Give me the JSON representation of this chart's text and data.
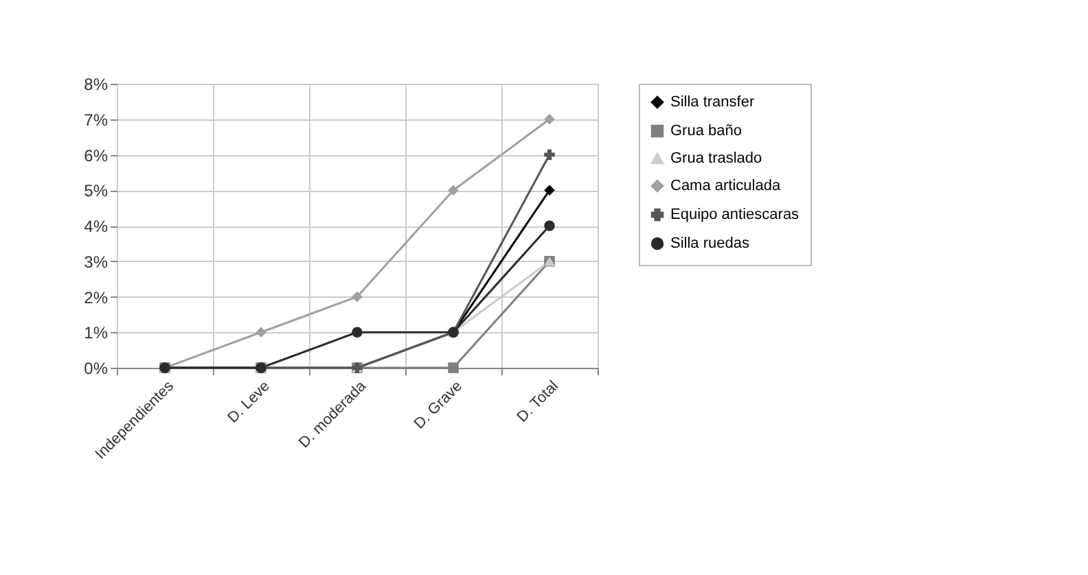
{
  "chart_data": {
    "type": "line",
    "categories": [
      "Independientes",
      "D. Leve",
      "D. moderada",
      "D. Grave",
      "D. Total"
    ],
    "series": [
      {
        "name": "Silla transfer",
        "color": "#000000",
        "marker": "diamond",
        "values": [
          0,
          0,
          0,
          1,
          5
        ]
      },
      {
        "name": "Grua baño",
        "color": "#808080",
        "marker": "square",
        "values": [
          0,
          0,
          0,
          0,
          3
        ]
      },
      {
        "name": "Grua traslado",
        "color": "#cccccc",
        "marker": "triangle",
        "values": [
          0,
          0,
          0,
          1,
          3
        ]
      },
      {
        "name": "Cama articulada",
        "color": "#a0a0a0",
        "marker": "diamond",
        "values": [
          0,
          1,
          2,
          5,
          7
        ]
      },
      {
        "name": "Equipo antiescaras",
        "color": "#555555",
        "marker": "cross",
        "values": [
          0,
          0,
          0,
          1,
          6
        ]
      },
      {
        "name": "Silla ruedas",
        "color": "#2b2b2b",
        "marker": "circle",
        "values": [
          0,
          0,
          1,
          1,
          4
        ]
      }
    ],
    "ylim": [
      0,
      8
    ],
    "yticks": [
      {
        "value": 0,
        "label": "0%"
      },
      {
        "value": 1,
        "label": "1%"
      },
      {
        "value": 2,
        "label": "2%"
      },
      {
        "value": 3,
        "label": "3%"
      },
      {
        "value": 4,
        "label": "4%"
      },
      {
        "value": 5,
        "label": "5%"
      },
      {
        "value": 6,
        "label": "6%"
      },
      {
        "value": 7,
        "label": "7%"
      },
      {
        "value": 8,
        "label": "8%"
      }
    ],
    "grid": true,
    "legend": "right"
  }
}
